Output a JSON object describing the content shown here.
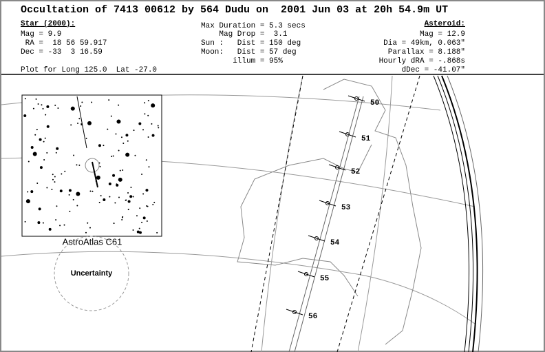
{
  "header": {
    "title": "Occultation of 7413 00612 by 564 Dudu on  2001 Jun 03 at 20h 54.9m UT"
  },
  "star": {
    "heading": "Star (2000):",
    "lines": [
      "Mag = 9.9",
      " RA =  18 56 59.917",
      "Dec = -33  3 16.59"
    ]
  },
  "event": {
    "lines": [
      "Max Duration = 5.3 secs",
      "    Mag Drop =  3.1",
      "Sun :   Dist = 150 deg",
      "Moon:   Dist = 57 deg",
      "       illum = 95%"
    ]
  },
  "asteroid": {
    "heading": "Asteroid:",
    "lines": [
      "Mag = 12.9",
      "Dia = 49km, 0.063\"",
      "Parallax = 8.188\"",
      "Hourly dRA = -.868s",
      "dDec = -41.07\""
    ]
  },
  "plot_note": "Plot for Long 125.0  Lat -27.0",
  "inset": {
    "label": "AstroAtlas C61"
  },
  "uncertainty": "Uncertainty",
  "time_marks": [
    "50",
    "51",
    "52",
    "53",
    "54",
    "55",
    "56"
  ]
}
